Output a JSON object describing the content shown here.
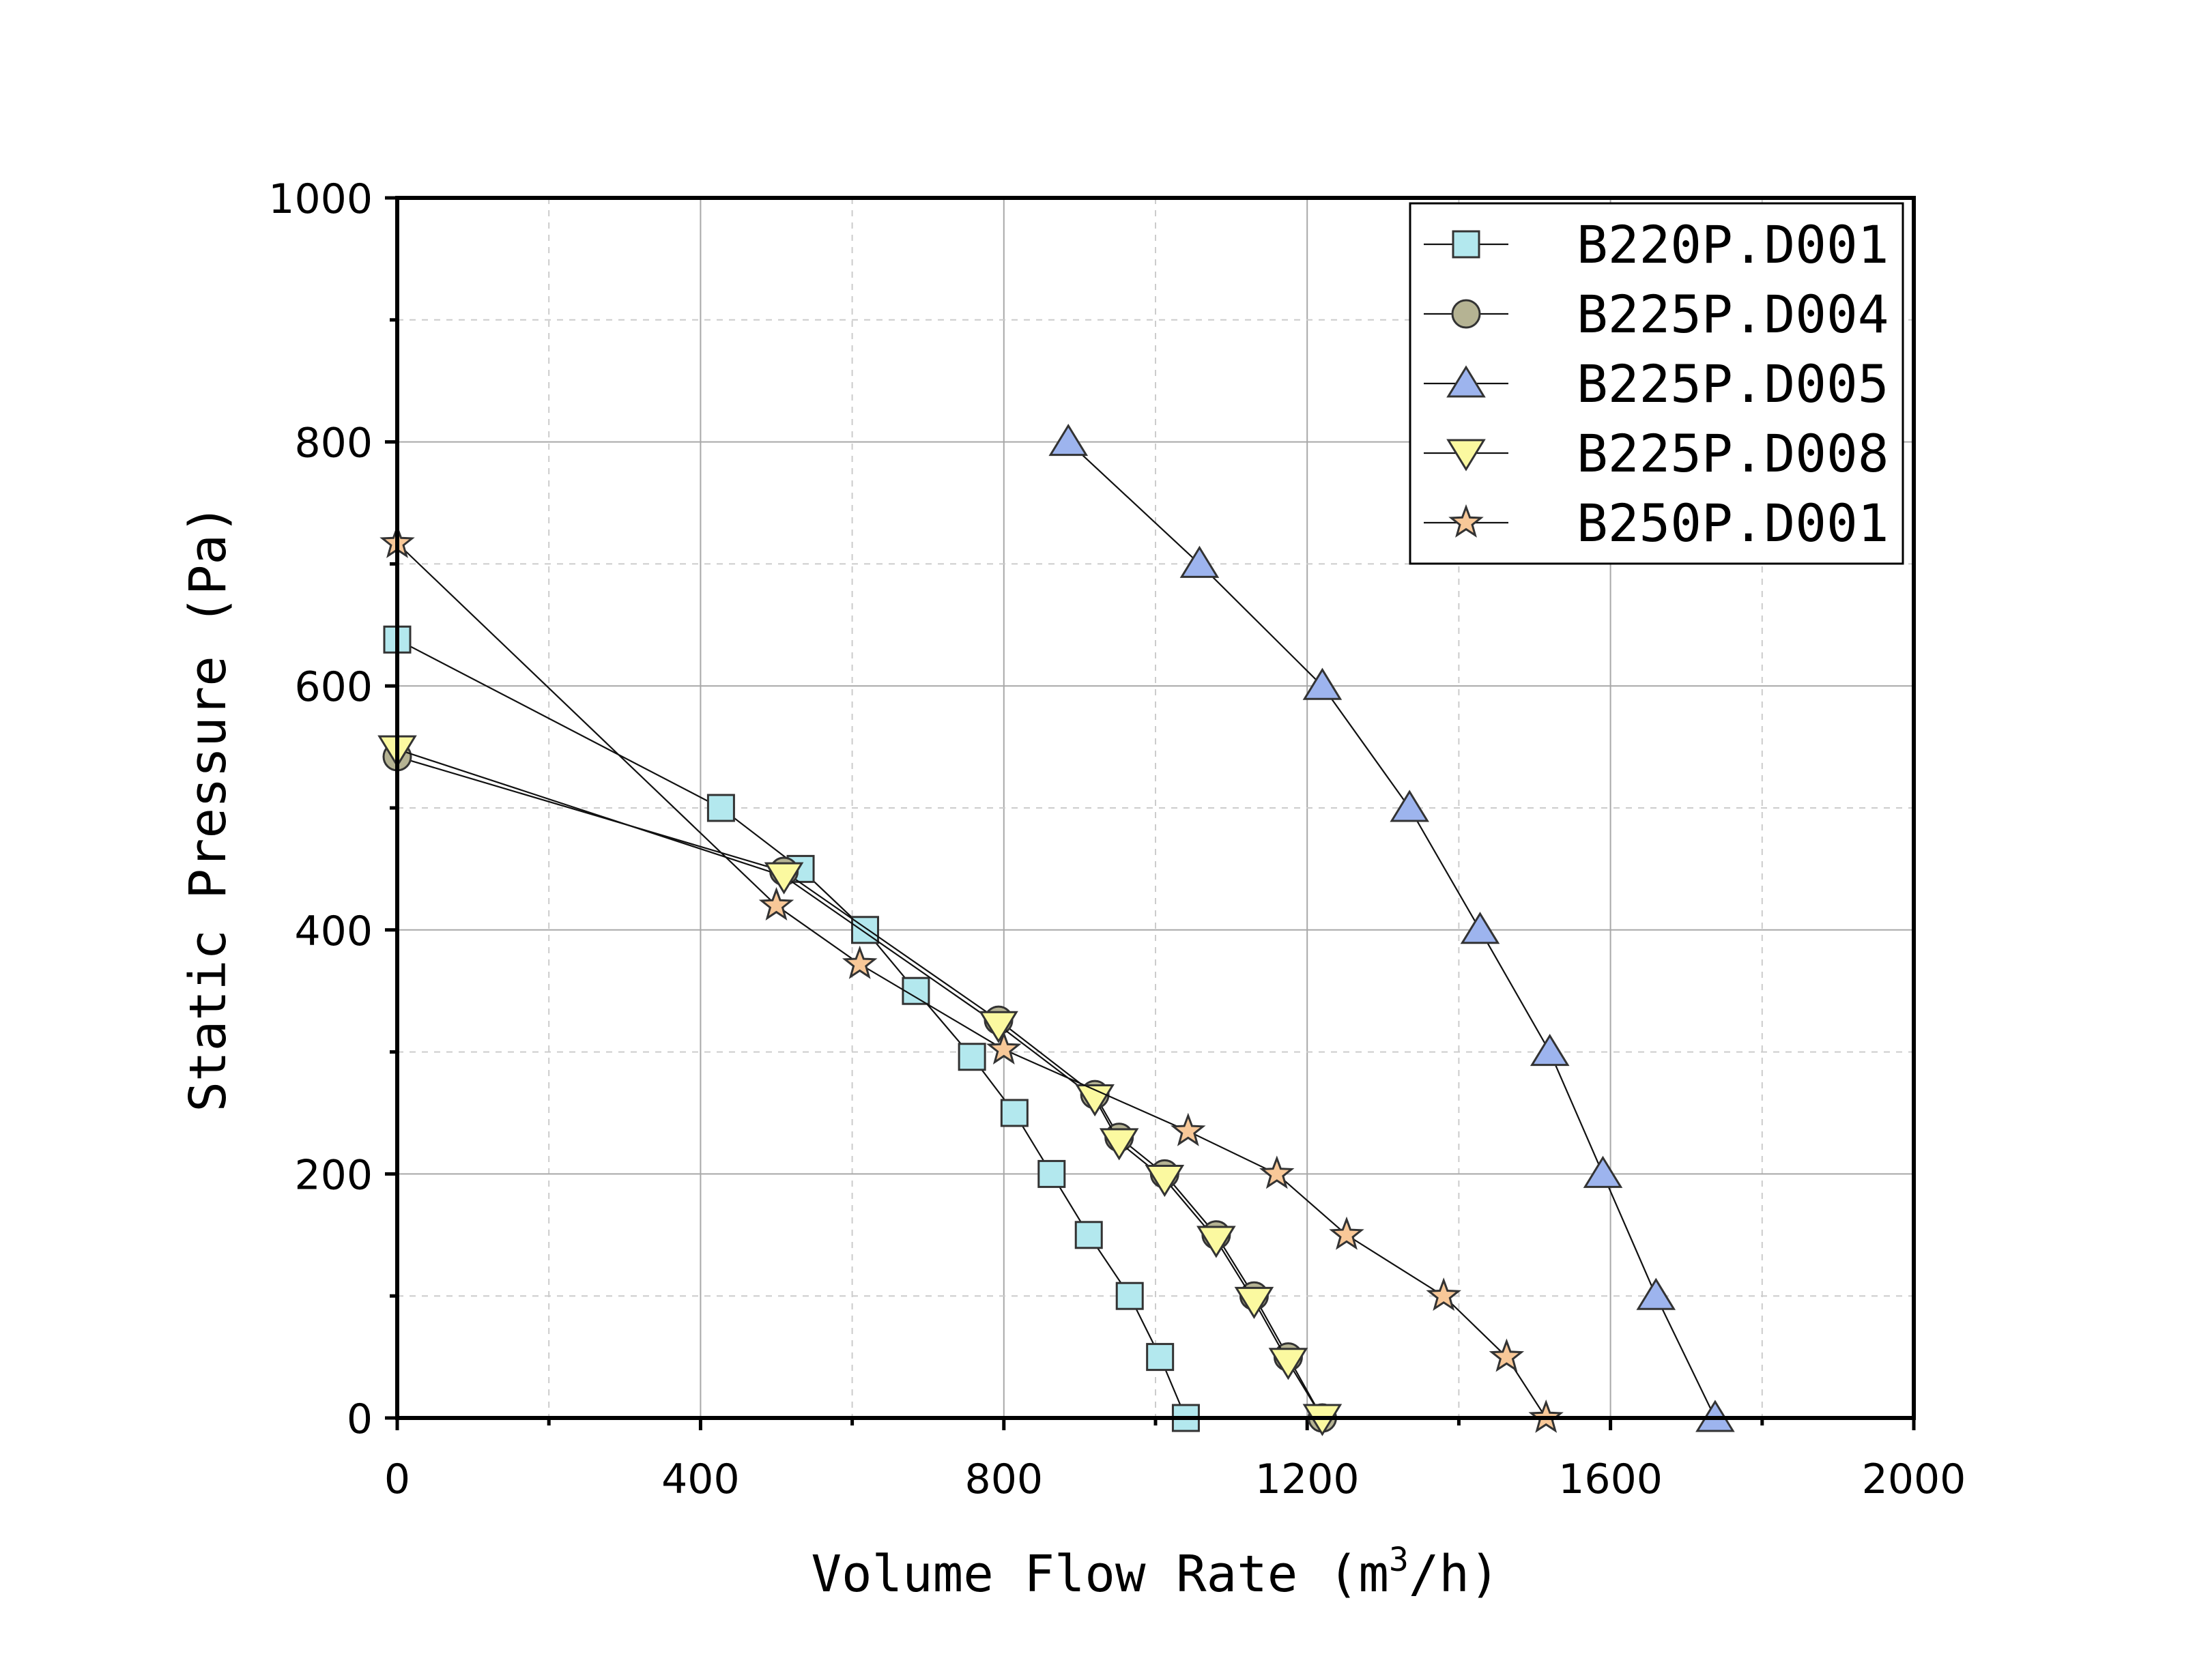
{
  "chart_data": {
    "type": "line",
    "title": "",
    "xlabel": "Volume Flow Rate (m3/h)",
    "xlabel_parts": {
      "main": "Volume Flow Rate (m",
      "sup": "3",
      "tail": "/h)"
    },
    "ylabel": "Static Pressure (Pa)",
    "xlim": [
      0,
      2000
    ],
    "ylim": [
      0,
      1000
    ],
    "x_ticks": [
      "0",
      "400",
      "800",
      "1200",
      "1600",
      "2000"
    ],
    "y_ticks": [
      "0",
      "200",
      "400",
      "600",
      "800",
      "1000"
    ],
    "grid": true,
    "legend_position": "top-right",
    "series": [
      {
        "name": "B220P.D001",
        "marker": "square",
        "color": "#b3e8ee",
        "x": [
          0,
          427,
          532,
          617,
          684,
          758,
          814,
          863,
          912,
          966,
          1006,
          1040
        ],
        "y": [
          638,
          500,
          450,
          400,
          350,
          296,
          250,
          200,
          150,
          100,
          50,
          0
        ]
      },
      {
        "name": "B225P.D004",
        "marker": "circle",
        "color": "#b5b393",
        "x": [
          0,
          510,
          793,
          920,
          952,
          1012,
          1080,
          1130,
          1175,
          1220
        ],
        "y": [
          542,
          448,
          326,
          265,
          230,
          200,
          150,
          100,
          50,
          0
        ]
      },
      {
        "name": "B225P.D005",
        "marker": "triangle-up",
        "color": "#9db4ee",
        "x": [
          885,
          1058,
          1220,
          1335,
          1428,
          1520,
          1590,
          1660,
          1738
        ],
        "y": [
          800,
          700,
          600,
          500,
          400,
          300,
          200,
          100,
          0
        ]
      },
      {
        "name": "B225P.D008",
        "marker": "triangle-down",
        "color": "#fbf9a0",
        "x": [
          0,
          510,
          793,
          920,
          952,
          1012,
          1080,
          1130,
          1175,
          1220
        ],
        "y": [
          548,
          444,
          322,
          262,
          226,
          196,
          146,
          96,
          46,
          0
        ]
      },
      {
        "name": "B250P.D001",
        "marker": "star",
        "color": "#f8c898",
        "x": [
          0,
          500,
          610,
          800,
          1043,
          1160,
          1252,
          1380,
          1463,
          1515
        ],
        "y": [
          717,
          420,
          372,
          302,
          235,
          200,
          150,
          100,
          50,
          0
        ]
      }
    ]
  }
}
